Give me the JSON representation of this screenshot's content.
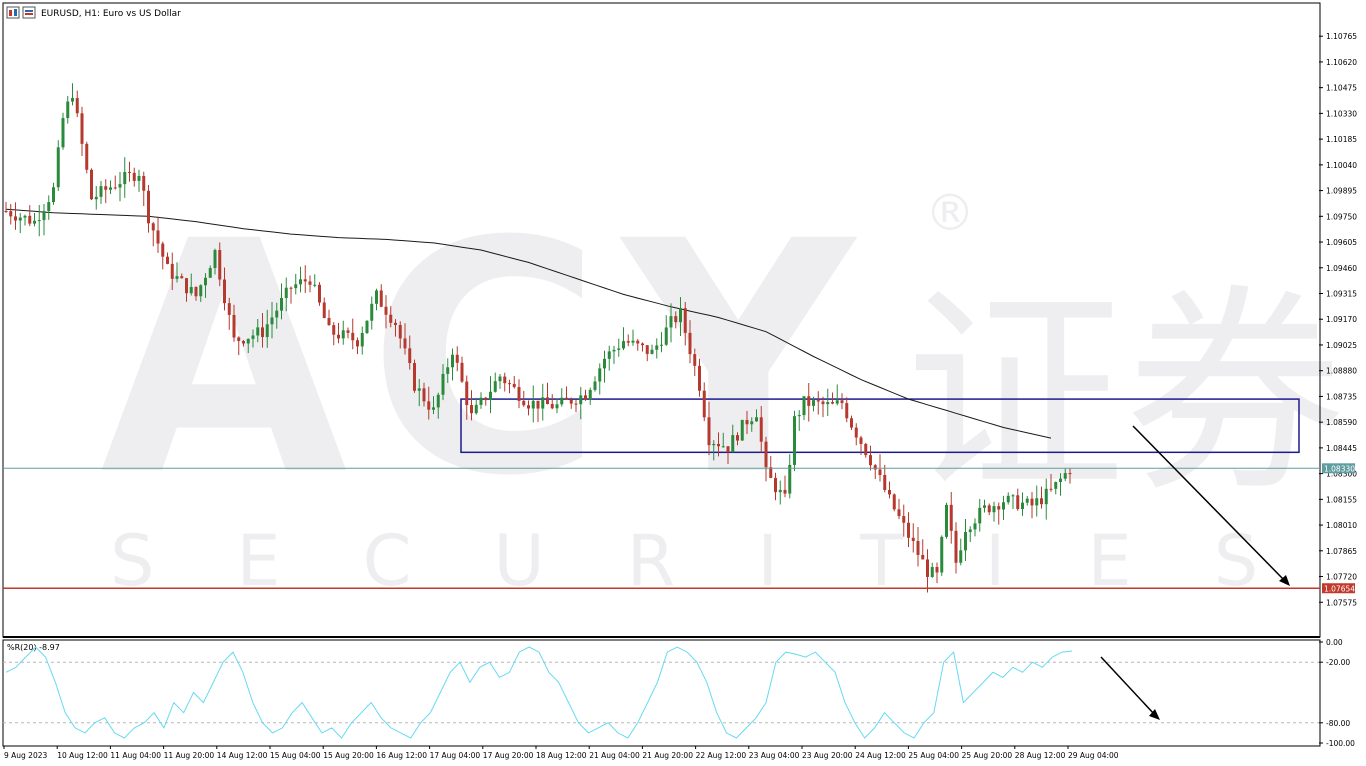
{
  "window": {
    "title": "EURUSD, H1:  Euro vs US Dollar",
    "indicator_label": "%R(20) -8.97"
  },
  "watermark": {
    "brand": "ACY",
    "sub": "SECURITIES",
    "cjk": "证券",
    "reg": "®"
  },
  "colors": {
    "bull": "#2a8a3c",
    "bear": "#b5392e",
    "ma": "#1a1a1a",
    "box": "#1b1b8e",
    "current": "#5f9ea0",
    "support": "#c0392b",
    "wr": "#66d9f2",
    "grid_dash": "#b8b8b8",
    "axis": "#000000"
  },
  "chart_data": {
    "type": "candlestick",
    "symbol": "EURUSD",
    "timeframe": "H1",
    "price_axis": {
      "range": [
        1.0743,
        1.10845
      ],
      "ticks": [
        "1.10765",
        "1.10620",
        "1.10475",
        "1.10330",
        "1.10185",
        "1.10040",
        "1.09895",
        "1.09750",
        "1.09605",
        "1.09460",
        "1.09315",
        "1.09170",
        "1.09025",
        "1.08880",
        "1.08735",
        "1.08590",
        "1.08445",
        "1.08300",
        "1.08155",
        "1.08010",
        "1.07865",
        "1.07720",
        "1.07575"
      ]
    },
    "time_axis": {
      "labels": [
        "9 Aug 2023",
        "10 Aug 12:00",
        "11 Aug 04:00",
        "11 Aug 20:00",
        "14 Aug 12:00",
        "15 Aug 04:00",
        "15 Aug 20:00",
        "16 Aug 12:00",
        "17 Aug 04:00",
        "17 Aug 20:00",
        "18 Aug 12:00",
        "21 Aug 04:00",
        "21 Aug 20:00",
        "22 Aug 12:00",
        "23 Aug 04:00",
        "23 Aug 20:00",
        "24 Aug 12:00",
        "25 Aug 04:00",
        "25 Aug 20:00",
        "28 Aug 12:00",
        "29 Aug 04:00"
      ]
    },
    "current_price": {
      "label": "1.08330",
      "value": 1.0833
    },
    "support_level": {
      "label": "1.07654",
      "value": 1.07654
    },
    "resistance_zone": {
      "from": 1.0842,
      "to": 1.0872
    },
    "moving_average": [
      {
        "t": 0,
        "v": 1.0979
      },
      {
        "t": 5,
        "v": 1.0977
      },
      {
        "t": 10,
        "v": 1.0976
      },
      {
        "t": 15,
        "v": 1.0975
      },
      {
        "t": 20,
        "v": 1.0972
      },
      {
        "t": 25,
        "v": 1.0968
      },
      {
        "t": 30,
        "v": 1.0965
      },
      {
        "t": 35,
        "v": 1.0963
      },
      {
        "t": 40,
        "v": 1.0962
      },
      {
        "t": 45,
        "v": 1.096
      },
      {
        "t": 50,
        "v": 1.0956
      },
      {
        "t": 55,
        "v": 1.0949
      },
      {
        "t": 60,
        "v": 1.094
      },
      {
        "t": 65,
        "v": 1.0931
      },
      {
        "t": 70,
        "v": 1.0924
      },
      {
        "t": 75,
        "v": 1.0918
      },
      {
        "t": 80,
        "v": 1.091
      },
      {
        "t": 85,
        "v": 1.0896
      },
      {
        "t": 90,
        "v": 1.0883
      },
      {
        "t": 95,
        "v": 1.0872
      },
      {
        "t": 100,
        "v": 1.0864
      },
      {
        "t": 105,
        "v": 1.0856
      },
      {
        "t": 110,
        "v": 1.085
      }
    ],
    "price_path": [
      {
        "t": 0,
        "v": 1.0978
      },
      {
        "t": 3,
        "v": 1.0972
      },
      {
        "t": 5,
        "v": 1.099
      },
      {
        "t": 6,
        "v": 1.103
      },
      {
        "t": 7,
        "v": 1.1045
      },
      {
        "t": 8,
        "v": 1.1015
      },
      {
        "t": 9,
        "v": 1.0985
      },
      {
        "t": 12,
        "v": 1.0995
      },
      {
        "t": 14,
        "v": 1.1
      },
      {
        "t": 15,
        "v": 1.0975
      },
      {
        "t": 17,
        "v": 1.0945
      },
      {
        "t": 20,
        "v": 1.093
      },
      {
        "t": 22,
        "v": 1.0955
      },
      {
        "t": 24,
        "v": 1.0905
      },
      {
        "t": 27,
        "v": 1.091
      },
      {
        "t": 30,
        "v": 1.0935
      },
      {
        "t": 32,
        "v": 1.094
      },
      {
        "t": 34,
        "v": 1.091
      },
      {
        "t": 37,
        "v": 1.0905
      },
      {
        "t": 39,
        "v": 1.093
      },
      {
        "t": 41,
        "v": 1.0915
      },
      {
        "t": 43,
        "v": 1.088
      },
      {
        "t": 45,
        "v": 1.0865
      },
      {
        "t": 47,
        "v": 1.09
      },
      {
        "t": 49,
        "v": 1.0862
      },
      {
        "t": 52,
        "v": 1.0885
      },
      {
        "t": 55,
        "v": 1.087
      },
      {
        "t": 58,
        "v": 1.0868
      },
      {
        "t": 61,
        "v": 1.0875
      },
      {
        "t": 63,
        "v": 1.0895
      },
      {
        "t": 65,
        "v": 1.0905
      },
      {
        "t": 68,
        "v": 1.0898
      },
      {
        "t": 70,
        "v": 1.0915
      },
      {
        "t": 71,
        "v": 1.092
      },
      {
        "t": 73,
        "v": 1.088
      },
      {
        "t": 74,
        "v": 1.085
      },
      {
        "t": 76,
        "v": 1.0845
      },
      {
        "t": 78,
        "v": 1.086
      },
      {
        "t": 79,
        "v": 1.0865
      },
      {
        "t": 80,
        "v": 1.083
      },
      {
        "t": 82,
        "v": 1.0815
      },
      {
        "t": 83,
        "v": 1.086
      },
      {
        "t": 84,
        "v": 1.087
      },
      {
        "t": 87,
        "v": 1.0868
      },
      {
        "t": 88,
        "v": 1.087
      },
      {
        "t": 89,
        "v": 1.0858
      },
      {
        "t": 91,
        "v": 1.0838
      },
      {
        "t": 93,
        "v": 1.0815
      },
      {
        "t": 95,
        "v": 1.0795
      },
      {
        "t": 97,
        "v": 1.0775
      },
      {
        "t": 98,
        "v": 1.0772
      },
      {
        "t": 99,
        "v": 1.081
      },
      {
        "t": 100,
        "v": 1.078
      },
      {
        "t": 101,
        "v": 1.08
      },
      {
        "t": 103,
        "v": 1.081
      },
      {
        "t": 105,
        "v": 1.0815
      },
      {
        "t": 108,
        "v": 1.0812
      },
      {
        "t": 110,
        "v": 1.082
      },
      {
        "t": 112,
        "v": 1.0833
      }
    ],
    "wr_indicator": {
      "name": "%R(20)",
      "current": -8.97,
      "range": [
        -100,
        0
      ],
      "ticks": [
        "0.00",
        "-20.00",
        "-80.00",
        "-100.00"
      ],
      "levels": [
        -20,
        -80
      ],
      "values": [
        -30,
        -25,
        -15,
        -5,
        -15,
        -40,
        -70,
        -85,
        -90,
        -80,
        -75,
        -90,
        -95,
        -85,
        -80,
        -70,
        -85,
        -60,
        -70,
        -50,
        -60,
        -40,
        -20,
        -10,
        -30,
        -60,
        -80,
        -90,
        -85,
        -70,
        -60,
        -75,
        -90,
        -85,
        -95,
        -80,
        -70,
        -60,
        -75,
        -85,
        -90,
        -95,
        -80,
        -70,
        -50,
        -30,
        -20,
        -40,
        -25,
        -20,
        -35,
        -30,
        -10,
        -5,
        -10,
        -30,
        -40,
        -60,
        -80,
        -90,
        -85,
        -80,
        -90,
        -95,
        -80,
        -60,
        -40,
        -10,
        -5,
        -10,
        -20,
        -40,
        -70,
        -90,
        -95,
        -85,
        -75,
        -60,
        -20,
        -10,
        -12,
        -15,
        -10,
        -20,
        -30,
        -60,
        -80,
        -95,
        -85,
        -70,
        -80,
        -90,
        -95,
        -80,
        -70,
        -20,
        -10,
        -60,
        -50,
        -40,
        -30,
        -35,
        -25,
        -30,
        -20,
        -25,
        -15,
        -10,
        -8.97
      ]
    }
  }
}
